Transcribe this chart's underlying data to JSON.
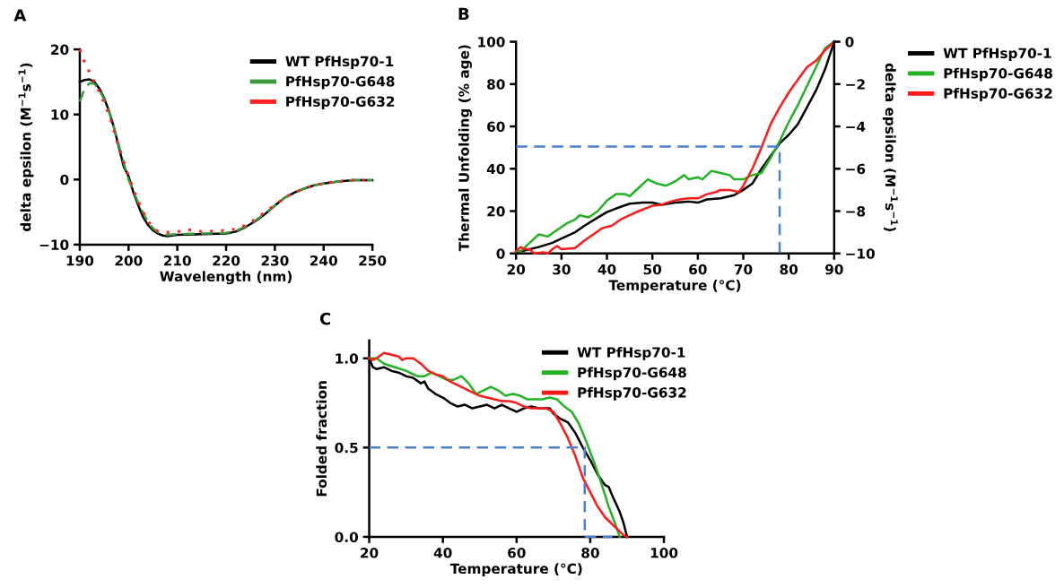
{
  "chart_data": [
    {
      "type": "line",
      "title": "A",
      "xlabel": "Wavelength (nm)",
      "ylabel": "delta epsilon (M$^{−1}$s$^{−1}$)",
      "xlim": [
        190,
        250
      ],
      "xticks": [
        190,
        200,
        210,
        220,
        230,
        240,
        250
      ],
      "ylim": [
        -10,
        20
      ],
      "yticks": [
        -10,
        0,
        10,
        20
      ],
      "grid": false,
      "legend": "top right",
      "series": [
        {
          "name": "WT PfHsp70-1",
          "color": "#000000",
          "line_style": "solid",
          "x": [
            190,
            191,
            192,
            193,
            194,
            195,
            196,
            197,
            198,
            199,
            200,
            201,
            202,
            203,
            204,
            205,
            206,
            207,
            208,
            210,
            215,
            220,
            222,
            224,
            226,
            228,
            230,
            232,
            234,
            236,
            238,
            240,
            243,
            246,
            250
          ],
          "values": [
            15,
            15.3,
            15.4,
            15,
            14,
            12.5,
            10.5,
            8,
            5,
            2,
            0.5,
            -2,
            -4,
            -5.8,
            -7,
            -7.8,
            -8.3,
            -8.6,
            -8.7,
            -8.5,
            -8.4,
            -8.3,
            -8,
            -7.3,
            -6.4,
            -5.3,
            -4,
            -2.8,
            -2,
            -1.4,
            -0.9,
            -0.6,
            -0.3,
            -0.1,
            -0.1
          ]
        },
        {
          "name": "PfHsp70-G648",
          "color": "#3c9a3c",
          "line_style": "dashed",
          "x": [
            190,
            191,
            192,
            193,
            194,
            195,
            196,
            197,
            198,
            199,
            200,
            201,
            202,
            203,
            204,
            205,
            206,
            207,
            208,
            210,
            215,
            220,
            222,
            224,
            226,
            228,
            230,
            232,
            234,
            236,
            238,
            240,
            243,
            246,
            250
          ],
          "values": [
            12,
            14,
            14.8,
            14.7,
            13.8,
            12.3,
            10.4,
            8,
            5.3,
            2.6,
            0,
            -1.8,
            -3.6,
            -5.2,
            -6.5,
            -7.5,
            -8.1,
            -8.4,
            -8.5,
            -8.4,
            -8.3,
            -8.2,
            -7.9,
            -7.2,
            -6.3,
            -5.2,
            -4,
            -2.8,
            -2,
            -1.4,
            -0.9,
            -0.6,
            -0.3,
            -0.1,
            -0.1
          ]
        },
        {
          "name": "PfHsp70-G632",
          "color": "#ff2020",
          "line_style": "dotted",
          "x": [
            190,
            191,
            192,
            193,
            194,
            195,
            196,
            197,
            198,
            199,
            200,
            201,
            202,
            203,
            204,
            205,
            206,
            207,
            208,
            210,
            213,
            215,
            218,
            220,
            222,
            224,
            226,
            228,
            230,
            232,
            234,
            236,
            238,
            240,
            243,
            246,
            250
          ],
          "values": [
            20,
            18,
            16.5,
            15,
            13.5,
            11.8,
            10,
            7.5,
            5,
            2.8,
            0.5,
            -1.5,
            -3.3,
            -5,
            -6.4,
            -7.4,
            -7.9,
            -8.1,
            -8.1,
            -8,
            -7.7,
            -8,
            -7.9,
            -7.8,
            -7.6,
            -7,
            -6.1,
            -5,
            -3.9,
            -2.8,
            -2,
            -1.4,
            -0.9,
            -0.6,
            -0.3,
            -0.1,
            -0.1
          ]
        }
      ]
    },
    {
      "type": "line",
      "title": "B",
      "xlabel": "Temperature (°C)",
      "ylabel": "Thermal Unfolding (% age)",
      "y2label": "delta epsilon (M$^{−1}$s$^{−1}$)",
      "xlim": [
        20,
        90
      ],
      "xticks": [
        20,
        30,
        40,
        50,
        60,
        70,
        80,
        90
      ],
      "ylim": [
        0,
        100
      ],
      "yticks": [
        0,
        20,
        40,
        60,
        80,
        100
      ],
      "y2lim": [
        -10,
        0
      ],
      "y2ticks": [
        -10,
        -8,
        -6,
        -4,
        -2,
        0
      ],
      "grid": false,
      "legend": "right",
      "series": [
        {
          "name": "WT PfHsp70-1",
          "color": "#000000",
          "line_style": "solid",
          "x": [
            20,
            22,
            25,
            28,
            30,
            33,
            35,
            38,
            40,
            43,
            45,
            48,
            50,
            52,
            55,
            58,
            60,
            62,
            65,
            68,
            70,
            72,
            74,
            76,
            78,
            80,
            82,
            84,
            86,
            88,
            90
          ],
          "values": [
            0.5,
            1.5,
            3,
            5,
            7,
            10,
            13,
            17,
            19.5,
            22,
            23.5,
            24,
            24,
            23,
            24,
            24.5,
            24,
            25.5,
            26,
            27.5,
            30,
            33,
            40,
            46,
            52,
            56,
            61,
            69,
            77,
            87,
            100
          ]
        },
        {
          "name": "PfHsp70-G648",
          "color": "#22b222",
          "line_style": "solid",
          "x": [
            20,
            21,
            22,
            23,
            25,
            27,
            29,
            31,
            33,
            34,
            36,
            38,
            40,
            42,
            44,
            45,
            47,
            49,
            51,
            53,
            55,
            57,
            58,
            60,
            61,
            63,
            65,
            67,
            68,
            70,
            72,
            74,
            76,
            78,
            80,
            82,
            84,
            86,
            88,
            90
          ],
          "values": [
            1,
            1,
            3,
            5,
            9,
            8,
            11,
            14,
            16,
            18,
            17,
            20,
            25,
            28,
            28,
            27,
            31,
            35,
            33,
            32,
            34,
            37,
            35,
            36,
            35,
            39,
            38,
            37,
            35,
            35,
            37,
            38,
            45,
            53,
            62,
            70,
            79,
            88,
            97,
            100
          ]
        },
        {
          "name": "PfHsp70-G632",
          "color": "#ff1a1a",
          "line_style": "solid",
          "x": [
            20,
            21,
            22,
            23,
            24,
            26,
            27,
            28,
            29,
            30,
            33,
            35,
            37,
            39,
            41,
            43,
            45,
            47,
            50,
            52,
            54,
            56,
            58,
            60,
            62,
            64,
            65,
            67,
            69,
            70,
            72,
            74,
            76,
            78,
            80,
            82,
            84,
            86,
            88,
            90
          ],
          "values": [
            1,
            3,
            2,
            2,
            0,
            0.5,
            0,
            2,
            3.5,
            2,
            2.5,
            6,
            9,
            12,
            13,
            16,
            18,
            20,
            22.5,
            23,
            24.5,
            25.5,
            26,
            26,
            28,
            29,
            30,
            30,
            29,
            32,
            40,
            50,
            61,
            69,
            76,
            82,
            88,
            91,
            96,
            100
          ]
        },
        {
          "color": "#4a7fd4",
          "line_style": "dashed",
          "x": [
            20,
            78,
            78
          ],
          "values": [
            50.5,
            50.5,
            0
          ]
        }
      ]
    },
    {
      "type": "line",
      "title": "C",
      "xlabel": "Temperature (°C)",
      "ylabel": "Folded fraction",
      "xlim": [
        20,
        100
      ],
      "xticks": [
        20,
        40,
        60,
        80,
        100
      ],
      "ylim": [
        0,
        1.1
      ],
      "yticks": [
        {
          "value": 0,
          "label": "0.0"
        },
        {
          "value": 0.5,
          "label": "0.5"
        },
        {
          "value": 1,
          "label": "1.0"
        }
      ],
      "grid": false,
      "legend": "top right",
      "series": [
        {
          "name": "WT PfHsp70-1",
          "color": "#000000",
          "line_style": "solid",
          "x": [
            20,
            21,
            22,
            24,
            26,
            28,
            30,
            32,
            34,
            35,
            36,
            38,
            40,
            42,
            44,
            46,
            48,
            50,
            52,
            54,
            56,
            58,
            60,
            62,
            64,
            66,
            68,
            69,
            70,
            72,
            74,
            76,
            78,
            80,
            82,
            84,
            85,
            86,
            88,
            89,
            90
          ],
          "values": [
            1.0,
            0.95,
            0.94,
            0.95,
            0.93,
            0.92,
            0.9,
            0.89,
            0.86,
            0.87,
            0.83,
            0.8,
            0.78,
            0.75,
            0.73,
            0.74,
            0.72,
            0.73,
            0.74,
            0.72,
            0.74,
            0.72,
            0.7,
            0.72,
            0.73,
            0.72,
            0.72,
            0.72,
            0.69,
            0.66,
            0.64,
            0.58,
            0.5,
            0.43,
            0.35,
            0.29,
            0.28,
            0.23,
            0.14,
            0.08,
            0
          ]
        },
        {
          "name": "PfHsp70-G648",
          "color": "#22b222",
          "line_style": "solid",
          "x": [
            20,
            22,
            24,
            27,
            30,
            33,
            35,
            37,
            39,
            41,
            43,
            45,
            47,
            49,
            51,
            53,
            55,
            57,
            59,
            61,
            63,
            65,
            67,
            69,
            71,
            73,
            75,
            77,
            79,
            81,
            83,
            85,
            87,
            88
          ],
          "values": [
            1.0,
            1.0,
            0.97,
            0.95,
            0.93,
            0.9,
            0.9,
            0.92,
            0.9,
            0.88,
            0.88,
            0.9,
            0.86,
            0.8,
            0.82,
            0.84,
            0.82,
            0.79,
            0.8,
            0.79,
            0.77,
            0.77,
            0.77,
            0.78,
            0.77,
            0.73,
            0.7,
            0.63,
            0.53,
            0.42,
            0.3,
            0.17,
            0.06,
            0
          ]
        },
        {
          "name": "PfHsp70-G632",
          "color": "#ff1a1a",
          "line_style": "solid",
          "x": [
            20,
            21,
            22,
            24,
            26,
            28,
            29,
            30,
            32,
            34,
            36,
            38,
            40,
            42,
            44,
            46,
            48,
            50,
            52,
            54,
            56,
            58,
            60,
            62,
            64,
            66,
            68,
            70,
            72,
            74,
            76,
            78,
            80,
            82,
            84,
            86,
            88,
            89,
            90
          ],
          "values": [
            1.0,
            0.99,
            1.0,
            1.03,
            1.02,
            1.01,
            0.99,
            1.0,
            1.0,
            0.97,
            0.93,
            0.91,
            0.9,
            0.87,
            0.85,
            0.83,
            0.81,
            0.79,
            0.78,
            0.77,
            0.76,
            0.76,
            0.75,
            0.73,
            0.72,
            0.72,
            0.72,
            0.7,
            0.63,
            0.55,
            0.45,
            0.33,
            0.25,
            0.17,
            0.11,
            0.07,
            0.03,
            0.01,
            0
          ]
        },
        {
          "color": "#4a7fd4",
          "line_style": "dashed",
          "x": [
            20,
            78.5,
            78.5,
            86
          ],
          "values": [
            0.5,
            0.5,
            0,
            0
          ]
        }
      ]
    }
  ]
}
